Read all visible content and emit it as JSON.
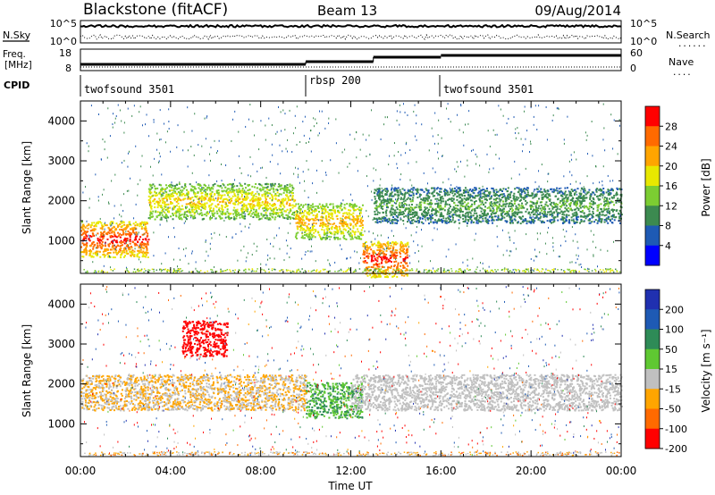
{
  "header": {
    "station": "Blackstone (fitACF)",
    "beam": "Beam 13",
    "date": "09/Aug/2014"
  },
  "noise_panel": {
    "left_label": "N.Sky",
    "right_label": "N.Search",
    "right_label_marker": "......",
    "y_ticks": [
      "10^5",
      "10^0"
    ]
  },
  "freq_panel": {
    "left_label_line1": "Freq.",
    "left_label_line2": "[MHz]",
    "left_ticks": [
      "18",
      "8"
    ],
    "right_label": "Nave",
    "right_label_marker": "....",
    "right_ticks": [
      "60",
      "0"
    ]
  },
  "cpid_panel": {
    "label": "CPID",
    "segments": [
      {
        "name": "twofsound 3501",
        "start_hour": 0,
        "end_hour": 10
      },
      {
        "name": "rbsp 200",
        "start_hour": 10,
        "end_hour": 16
      },
      {
        "name": "twofsound 3501",
        "start_hour": 16,
        "end_hour": 24
      }
    ]
  },
  "x_axis": {
    "label": "Time UT",
    "ticks": [
      "00:00",
      "04:00",
      "08:00",
      "12:00",
      "16:00",
      "20:00",
      "00:00"
    ],
    "range_hours": [
      0,
      24
    ]
  },
  "chart_data": [
    {
      "type": "heatmap",
      "name": "power",
      "ylabel": "Slant Range [km]",
      "ylim": [
        180,
        4500
      ],
      "y_ticks": [
        1000,
        2000,
        3000,
        4000
      ],
      "colorbar": {
        "label": "Power [dB]",
        "ticks": [
          "28",
          "24",
          "20",
          "16",
          "12",
          "8",
          "4"
        ],
        "colors": [
          "#ff0000",
          "#ff6a00",
          "#ffa500",
          "#e8e800",
          "#7ccd32",
          "#3c8a50",
          "#1e5ab4",
          "#0000ff"
        ]
      },
      "features": [
        {
          "start_hour": 0,
          "end_hour": 3,
          "range_km": 1050,
          "level_db": 28
        },
        {
          "start_hour": 3,
          "end_hour": 9.5,
          "range_km": 2000,
          "level_db": 18
        },
        {
          "start_hour": 9.5,
          "end_hour": 12.5,
          "range_km": 1500,
          "level_db": 20
        },
        {
          "start_hour": 12.5,
          "end_hour": 14.5,
          "range_km": 550,
          "level_db": 28
        },
        {
          "start_hour": 13,
          "end_hour": 24,
          "range_km": 1900,
          "level_db": 10
        }
      ]
    },
    {
      "type": "heatmap",
      "name": "velocity",
      "ylabel": "Slant Range [km]",
      "ylim": [
        180,
        4500
      ],
      "y_ticks": [
        1000,
        2000,
        3000,
        4000
      ],
      "colorbar": {
        "label": "Velocity [m s⁻¹]",
        "ticks": [
          "200",
          "100",
          "50",
          "15",
          "-15",
          "-50",
          "-100",
          "-200"
        ],
        "colors": [
          "#2030b0",
          "#1e5ab4",
          "#2e8b57",
          "#5fc832",
          "#c0c0c0",
          "#ffa500",
          "#ff6a00",
          "#ff0000"
        ]
      },
      "features": [
        {
          "start_hour": 0,
          "end_hour": 10,
          "range_km": 1800,
          "velocity": -15
        },
        {
          "start_hour": 4.5,
          "end_hour": 6.5,
          "range_km": 3150,
          "velocity": -200
        },
        {
          "start_hour": 10,
          "end_hour": 12.5,
          "range_km": 1600,
          "velocity": 30
        },
        {
          "start_hour": 12,
          "end_hour": 24,
          "range_km": 1800,
          "velocity": 0
        }
      ]
    }
  ]
}
